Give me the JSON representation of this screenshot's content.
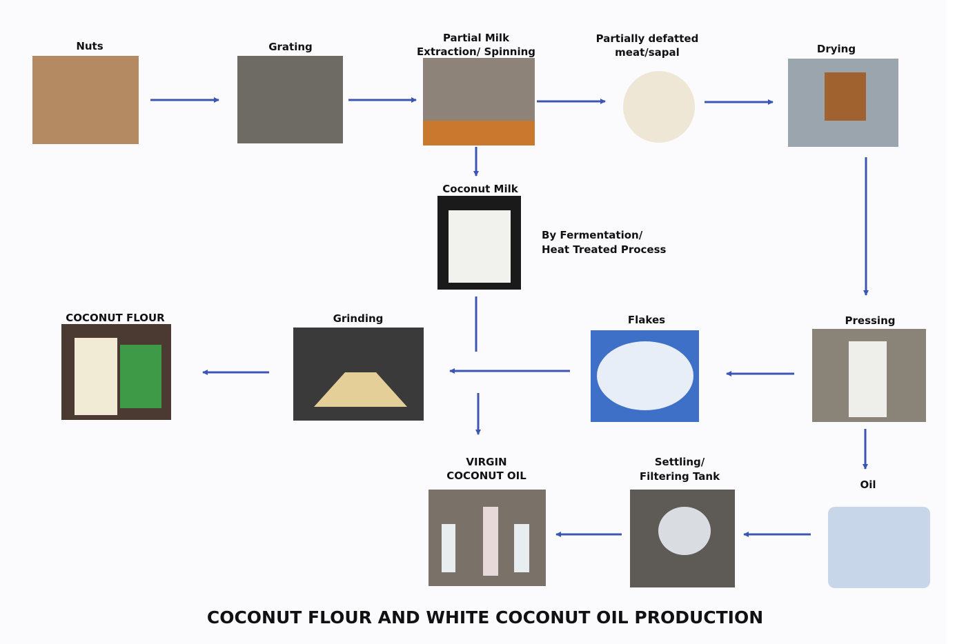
{
  "title": "COCONUT FLOUR AND WHITE COCONUT OIL PRODUCTION",
  "annotation": [
    "By Fermentation/",
    "Heat Treated Process"
  ],
  "nodes": [
    {
      "label": [
        "Nuts"
      ]
    },
    {
      "label": [
        "Grating"
      ]
    },
    {
      "label": [
        "Partial Milk",
        "Extraction/ Spinning"
      ]
    },
    {
      "label": [
        "Partially defatted",
        "meat/sapal"
      ]
    },
    {
      "label": [
        "Drying"
      ]
    },
    {
      "label": [
        "Coconut Milk"
      ]
    },
    {
      "label": [
        "COCONUT FLOUR"
      ]
    },
    {
      "label": [
        "Grinding"
      ]
    },
    {
      "label": [
        "Flakes"
      ]
    },
    {
      "label": [
        "Pressing"
      ]
    },
    {
      "label": [
        "Oil"
      ]
    },
    {
      "label": [
        "Settling/",
        "Filtering Tank"
      ]
    },
    {
      "label": [
        "VIRGIN",
        "COCONUT OIL"
      ]
    }
  ]
}
